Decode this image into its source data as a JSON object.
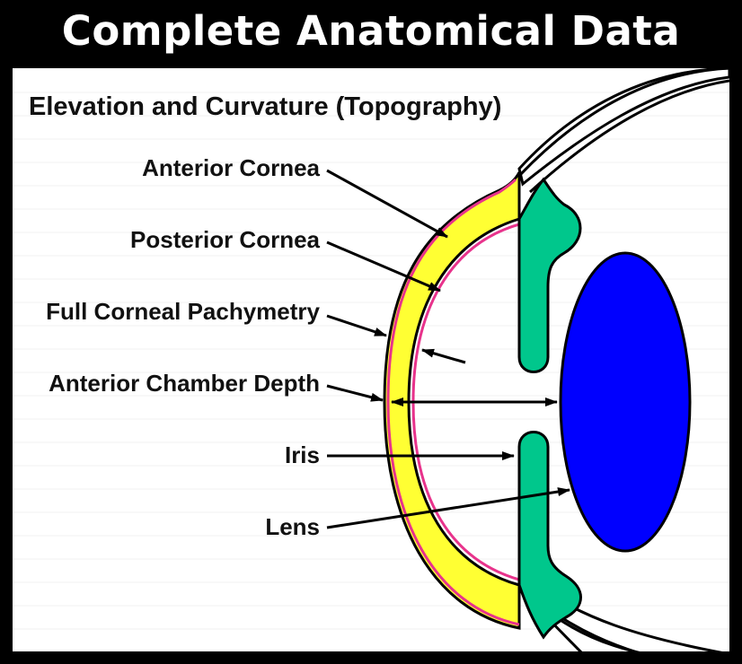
{
  "title": "Complete Anatomical Data",
  "subtitle": "Elevation and Curvature (Topography)",
  "labels": {
    "anterior_cornea": "Anterior Cornea",
    "posterior_cornea": "Posterior Cornea",
    "pachymetry": "Full Corneal Pachymetry",
    "chamber_depth": "Anterior Chamber Depth",
    "iris": "Iris",
    "lens": "Lens"
  },
  "colors": {
    "frame": "#000000",
    "cornea": "#ffff33",
    "cornea_outline": "#e8338c",
    "iris": "#00c78c",
    "lens": "#0000ff"
  }
}
